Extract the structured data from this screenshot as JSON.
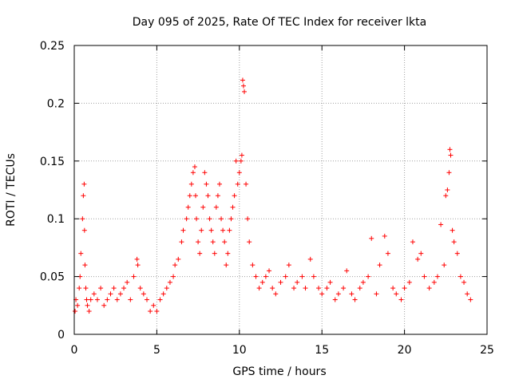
{
  "chart_data": {
    "type": "scatter",
    "title": "Day 095 of 2025, Rate Of TEC Index for receiver lkta",
    "xlabel": "GPS time / hours",
    "ylabel": "ROTI / TECUs",
    "xlim": [
      0,
      25
    ],
    "ylim": [
      0,
      0.25
    ],
    "xticks": [
      0,
      5,
      10,
      15,
      20,
      25
    ],
    "xtick_labels": [
      "0",
      "5",
      "10",
      "15",
      "20",
      "25"
    ],
    "yticks": [
      0,
      0.05,
      0.1,
      0.15,
      0.2,
      0.25
    ],
    "ytick_labels": [
      "0",
      "0.05",
      "0.1",
      "0.15",
      "0.2",
      "0.25"
    ],
    "grid": true,
    "marker": "+",
    "color": "#ff0000",
    "series": [
      {
        "x": [
          0.05,
          0.1,
          0.2,
          0.3,
          0.35,
          0.4,
          0.5,
          0.55,
          0.6,
          0.62,
          0.65,
          0.7,
          0.75,
          0.8,
          0.9,
          1.0,
          1.2,
          1.4,
          1.6,
          1.8,
          2.0,
          2.2,
          2.4,
          2.6,
          2.8,
          3.0,
          3.2,
          3.4,
          3.6,
          3.8,
          3.85,
          4.0,
          4.2,
          4.4,
          4.6,
          4.8,
          5.0,
          5.2,
          5.4,
          5.6,
          5.8,
          6.0,
          6.1,
          6.3,
          6.5,
          6.6,
          6.8,
          6.9,
          7.0,
          7.1,
          7.2,
          7.3,
          7.35,
          7.4,
          7.5,
          7.6,
          7.7,
          7.8,
          7.9,
          8.0,
          8.1,
          8.2,
          8.3,
          8.4,
          8.5,
          8.6,
          8.7,
          8.8,
          8.9,
          9.0,
          9.1,
          9.2,
          9.3,
          9.4,
          9.5,
          9.6,
          9.7,
          9.8,
          9.9,
          10.0,
          10.1,
          10.15,
          10.2,
          10.25,
          10.3,
          10.4,
          10.5,
          10.6,
          10.8,
          11.0,
          11.2,
          11.4,
          11.6,
          11.8,
          12.0,
          12.2,
          12.5,
          12.8,
          13.0,
          13.3,
          13.5,
          13.8,
          14.0,
          14.3,
          14.5,
          14.8,
          15.0,
          15.3,
          15.5,
          15.8,
          16.0,
          16.3,
          16.5,
          16.8,
          17.0,
          17.3,
          17.5,
          17.8,
          18.0,
          18.3,
          18.5,
          18.8,
          19.0,
          19.3,
          19.5,
          19.8,
          20.0,
          20.3,
          20.5,
          20.8,
          21.0,
          21.2,
          21.5,
          21.8,
          22.0,
          22.2,
          22.4,
          22.5,
          22.6,
          22.7,
          22.75,
          22.8,
          22.9,
          23.0,
          23.2,
          23.4,
          23.6,
          23.8,
          24.0
        ],
        "y": [
          0.02,
          0.03,
          0.025,
          0.04,
          0.05,
          0.07,
          0.1,
          0.12,
          0.13,
          0.09,
          0.06,
          0.04,
          0.03,
          0.025,
          0.02,
          0.03,
          0.035,
          0.03,
          0.04,
          0.025,
          0.03,
          0.035,
          0.04,
          0.03,
          0.035,
          0.04,
          0.045,
          0.03,
          0.05,
          0.065,
          0.06,
          0.04,
          0.035,
          0.03,
          0.02,
          0.025,
          0.02,
          0.03,
          0.035,
          0.04,
          0.045,
          0.05,
          0.06,
          0.065,
          0.08,
          0.09,
          0.1,
          0.11,
          0.12,
          0.13,
          0.14,
          0.145,
          0.12,
          0.1,
          0.08,
          0.07,
          0.09,
          0.11,
          0.14,
          0.13,
          0.12,
          0.1,
          0.09,
          0.08,
          0.07,
          0.11,
          0.12,
          0.13,
          0.1,
          0.09,
          0.08,
          0.06,
          0.07,
          0.09,
          0.1,
          0.11,
          0.12,
          0.15,
          0.13,
          0.14,
          0.15,
          0.155,
          0.22,
          0.215,
          0.21,
          0.13,
          0.1,
          0.08,
          0.06,
          0.05,
          0.04,
          0.045,
          0.05,
          0.055,
          0.04,
          0.035,
          0.045,
          0.05,
          0.06,
          0.04,
          0.045,
          0.05,
          0.04,
          0.065,
          0.05,
          0.04,
          0.035,
          0.04,
          0.045,
          0.03,
          0.035,
          0.04,
          0.055,
          0.035,
          0.03,
          0.04,
          0.045,
          0.05,
          0.083,
          0.035,
          0.06,
          0.085,
          0.07,
          0.04,
          0.035,
          0.03,
          0.04,
          0.045,
          0.08,
          0.065,
          0.07,
          0.05,
          0.04,
          0.045,
          0.05,
          0.095,
          0.06,
          0.12,
          0.125,
          0.14,
          0.16,
          0.155,
          0.09,
          0.08,
          0.07,
          0.05,
          0.045,
          0.035,
          0.03
        ]
      }
    ]
  }
}
